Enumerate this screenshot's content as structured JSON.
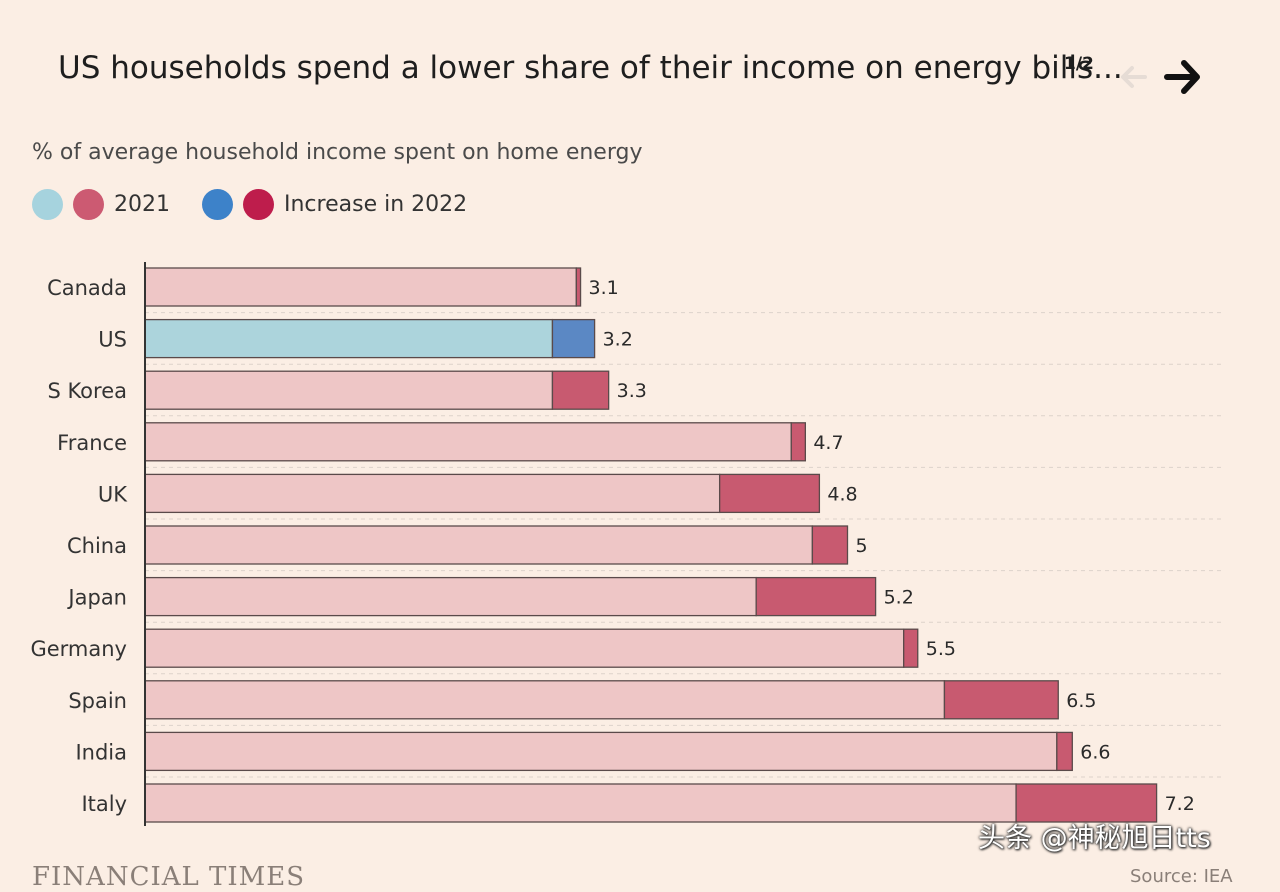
{
  "header": {
    "title": "US households spend a lower share of their income on energy bills...",
    "pager": "1/2",
    "prev_icon": "arrow-left-icon",
    "next_icon": "arrow-right-icon"
  },
  "subtitle": "% of average household income spent on home energy",
  "legend": {
    "base_label": "2021",
    "increase_label": "Increase in 2022",
    "colors": {
      "us_base": "#acd4dc",
      "other_base": "#eec6c6",
      "us_increase": "#5b88c4",
      "other_increase": "#c85a70",
      "legend_us_base": "#a6d3de",
      "legend_other_base": "#cc5a72",
      "legend_us_increase": "#3d82c9",
      "legend_other_increase": "#be1d4c"
    }
  },
  "chart_data": {
    "type": "bar",
    "orientation": "horizontal",
    "stacked": true,
    "title": "US households spend a lower share of their income on energy bills...",
    "subtitle": "% of average household income spent on home energy",
    "categories": [
      "Canada",
      "US",
      "S Korea",
      "France",
      "UK",
      "China",
      "Japan",
      "Germany",
      "Spain",
      "India",
      "Italy"
    ],
    "highlight": "US",
    "series": [
      {
        "name": "2021",
        "values": [
          3.07,
          2.9,
          2.9,
          4.6,
          4.09,
          4.75,
          4.35,
          5.4,
          5.69,
          6.49,
          6.2
        ]
      },
      {
        "name": "Increase in 2022",
        "values": [
          0.03,
          0.3,
          0.4,
          0.1,
          0.71,
          0.25,
          0.85,
          0.1,
          0.81,
          0.11,
          1.0
        ]
      }
    ],
    "totals": [
      "3.1",
      "3.2",
      "3.3",
      "4.7",
      "4.8",
      "5",
      "5.2",
      "5.5",
      "6.5",
      "6.6",
      "7.2"
    ],
    "xlim": [
      0,
      7.5
    ],
    "grid": "dashed horizontal separators",
    "legend_position": "top-left"
  },
  "footer": {
    "brand": "FINANCIAL TIMES",
    "source": "Source: IEA"
  },
  "watermark": "头条 @神秘旭日tts"
}
